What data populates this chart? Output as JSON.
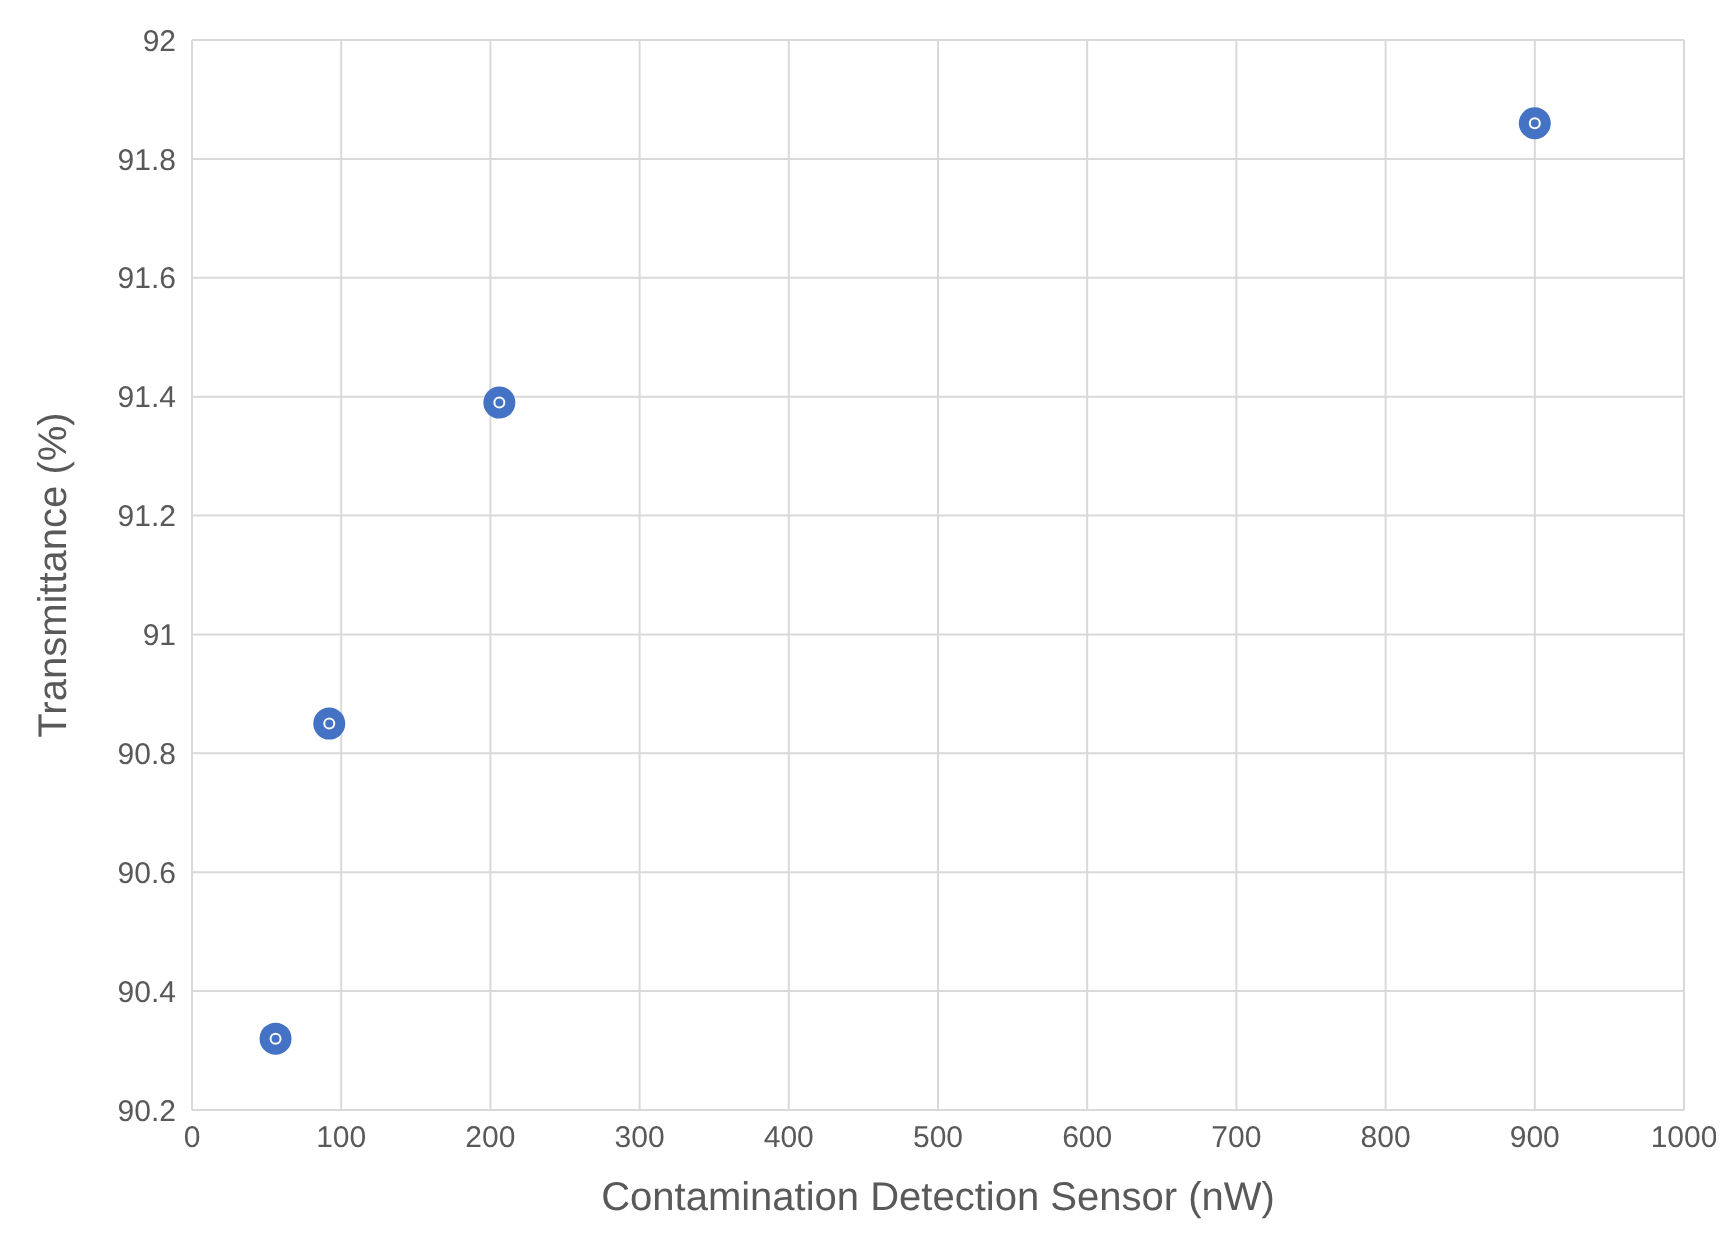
{
  "chart_data": {
    "type": "scatter",
    "xlabel": "Contamination Detection Sensor (nW)",
    "ylabel": "Transmittance (%)",
    "x": [
      56,
      92,
      206,
      900
    ],
    "series": [
      {
        "color": "#4472c4",
        "values": [
          90.32,
          90.85,
          91.39,
          91.86
        ]
      }
    ],
    "xlim": [
      0,
      1000
    ],
    "xticks": [
      0,
      100,
      200,
      300,
      400,
      500,
      600,
      700,
      800,
      900,
      1000
    ],
    "ylim": [
      90.2,
      92
    ],
    "yticks": [
      90.2,
      90.4,
      90.6,
      90.8,
      91,
      91.2,
      91.4,
      91.6,
      91.8,
      92
    ],
    "grid": true,
    "marker": "circle"
  }
}
